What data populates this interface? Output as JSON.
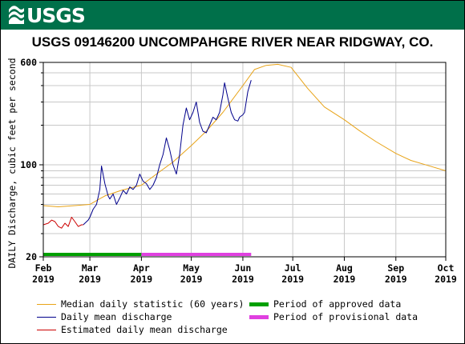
{
  "brand": {
    "name": "USGS",
    "banner_color": "#00704a"
  },
  "chart_data": {
    "type": "line",
    "title": "USGS 09146200 UNCOMPAHGRE RIVER NEAR RIDGWAY, CO.",
    "ylabel": "DAILY Discharge, cubic feet per second",
    "yscale": "log",
    "ylim": [
      20,
      600
    ],
    "xlim": [
      "2019-02-01",
      "2019-10-01"
    ],
    "y_tick_labels": [
      "20",
      "100",
      "600"
    ],
    "x_tick_labels": [
      {
        "month": "Feb",
        "year": "2019",
        "date": "2019-02-01"
      },
      {
        "month": "Mar",
        "year": "2019",
        "date": "2019-03-01"
      },
      {
        "month": "Apr",
        "year": "2019",
        "date": "2019-04-01"
      },
      {
        "month": "May",
        "year": "2019",
        "date": "2019-05-01"
      },
      {
        "month": "Jun",
        "year": "2019",
        "date": "2019-06-01"
      },
      {
        "month": "Jul",
        "year": "2019",
        "date": "2019-07-01"
      },
      {
        "month": "Aug",
        "year": "2019",
        "date": "2019-08-01"
      },
      {
        "month": "Sep",
        "year": "2019",
        "date": "2019-09-01"
      },
      {
        "month": "Oct",
        "year": "2019",
        "date": "2019-10-01"
      }
    ],
    "grid": true,
    "series": [
      {
        "name": "Median daily statistic (60 years)",
        "color": "#e8a317",
        "points": [
          [
            "2019-02-01",
            49
          ],
          [
            "2019-02-10",
            48
          ],
          [
            "2019-02-20",
            49
          ],
          [
            "2019-03-01",
            50
          ],
          [
            "2019-03-10",
            58
          ],
          [
            "2019-03-20",
            64
          ],
          [
            "2019-04-01",
            70
          ],
          [
            "2019-04-10",
            85
          ],
          [
            "2019-04-20",
            105
          ],
          [
            "2019-05-01",
            140
          ],
          [
            "2019-05-10",
            180
          ],
          [
            "2019-05-20",
            250
          ],
          [
            "2019-06-01",
            400
          ],
          [
            "2019-06-08",
            530
          ],
          [
            "2019-06-15",
            570
          ],
          [
            "2019-06-22",
            580
          ],
          [
            "2019-06-30",
            550
          ],
          [
            "2019-07-10",
            380
          ],
          [
            "2019-07-20",
            275
          ],
          [
            "2019-08-01",
            220
          ],
          [
            "2019-08-10",
            182
          ],
          [
            "2019-08-20",
            150
          ],
          [
            "2019-09-01",
            122
          ],
          [
            "2019-09-10",
            108
          ],
          [
            "2019-09-20",
            99
          ],
          [
            "2019-10-01",
            90
          ]
        ]
      },
      {
        "name": "Daily mean discharge",
        "color": "#00008b",
        "points": [
          [
            "2019-02-25",
            35
          ],
          [
            "2019-02-28",
            38
          ],
          [
            "2019-03-01",
            40
          ],
          [
            "2019-03-03",
            46
          ],
          [
            "2019-03-05",
            50
          ],
          [
            "2019-03-07",
            65
          ],
          [
            "2019-03-08",
            98
          ],
          [
            "2019-03-10",
            72
          ],
          [
            "2019-03-12",
            58
          ],
          [
            "2019-03-13",
            55
          ],
          [
            "2019-03-15",
            60
          ],
          [
            "2019-03-17",
            50
          ],
          [
            "2019-03-19",
            56
          ],
          [
            "2019-03-21",
            64
          ],
          [
            "2019-03-23",
            60
          ],
          [
            "2019-03-25",
            68
          ],
          [
            "2019-03-27",
            65
          ],
          [
            "2019-03-29",
            70
          ],
          [
            "2019-03-31",
            85
          ],
          [
            "2019-04-02",
            75
          ],
          [
            "2019-04-04",
            72
          ],
          [
            "2019-04-06",
            65
          ],
          [
            "2019-04-08",
            70
          ],
          [
            "2019-04-10",
            80
          ],
          [
            "2019-04-12",
            100
          ],
          [
            "2019-04-14",
            120
          ],
          [
            "2019-04-16",
            160
          ],
          [
            "2019-04-18",
            130
          ],
          [
            "2019-04-20",
            100
          ],
          [
            "2019-04-22",
            85
          ],
          [
            "2019-04-24",
            120
          ],
          [
            "2019-04-26",
            200
          ],
          [
            "2019-04-28",
            270
          ],
          [
            "2019-04-30",
            220
          ],
          [
            "2019-05-02",
            250
          ],
          [
            "2019-05-04",
            300
          ],
          [
            "2019-05-06",
            210
          ],
          [
            "2019-05-08",
            180
          ],
          [
            "2019-05-10",
            175
          ],
          [
            "2019-05-12",
            200
          ],
          [
            "2019-05-14",
            230
          ],
          [
            "2019-05-16",
            220
          ],
          [
            "2019-05-18",
            250
          ],
          [
            "2019-05-20",
            340
          ],
          [
            "2019-05-21",
            420
          ],
          [
            "2019-05-23",
            320
          ],
          [
            "2019-05-25",
            250
          ],
          [
            "2019-05-27",
            220
          ],
          [
            "2019-05-29",
            215
          ],
          [
            "2019-05-30",
            230
          ],
          [
            "2019-06-01",
            240
          ],
          [
            "2019-06-02",
            250
          ],
          [
            "2019-06-04",
            360
          ],
          [
            "2019-06-06",
            440
          ]
        ]
      },
      {
        "name": "Estimated daily mean discharge",
        "color": "#cc0000",
        "points": [
          [
            "2019-02-01",
            35
          ],
          [
            "2019-02-04",
            36
          ],
          [
            "2019-02-06",
            38
          ],
          [
            "2019-02-08",
            37
          ],
          [
            "2019-02-10",
            34
          ],
          [
            "2019-02-12",
            33
          ],
          [
            "2019-02-14",
            36
          ],
          [
            "2019-02-16",
            34
          ],
          [
            "2019-02-18",
            40
          ],
          [
            "2019-02-20",
            37
          ],
          [
            "2019-02-22",
            34
          ],
          [
            "2019-02-24",
            35
          ],
          [
            "2019-02-25",
            35
          ]
        ]
      }
    ],
    "periods": [
      {
        "name": "Period of approved data",
        "color": "#00a000",
        "start": "2019-02-01",
        "end": "2019-04-01"
      },
      {
        "name": "Period of provisional data",
        "color": "#e040e0",
        "start": "2019-04-01",
        "end": "2019-06-06"
      }
    ]
  }
}
